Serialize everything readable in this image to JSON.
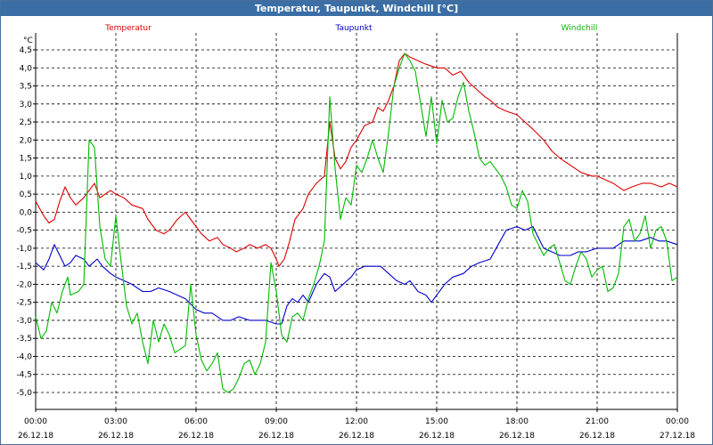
{
  "window": {
    "title": "Temperatur, Taupunkt, Windchill [°C]"
  },
  "chart_data": {
    "type": "line",
    "title": "Temperatur, Taupunkt, Windchill [°C]",
    "ylabel": "°C",
    "ylim": [
      -5.5,
      4.75
    ],
    "xlim": [
      0,
      24
    ],
    "grid": true,
    "legend_position": "top",
    "y_ticks": [
      "4,5",
      "4,0",
      "3,5",
      "3,0",
      "2,5",
      "2,0",
      "1,5",
      "1,0",
      "0,5",
      "0,0",
      "-0,5",
      "-1,0",
      "-1,5",
      "-2,0",
      "-2,5",
      "-3,0",
      "-3,5",
      "-4,0",
      "-4,5",
      "-5,0"
    ],
    "x_ticks": [
      {
        "time": "00:00",
        "date": "26.12.18"
      },
      {
        "time": "03:00",
        "date": "26.12.18"
      },
      {
        "time": "06:00",
        "date": "26.12.18"
      },
      {
        "time": "09:00",
        "date": "26.12.18"
      },
      {
        "time": "12:00",
        "date": "26.12.18"
      },
      {
        "time": "15:00",
        "date": "26.12.18"
      },
      {
        "time": "18:00",
        "date": "26.12.18"
      },
      {
        "time": "21:00",
        "date": "26.12.18"
      },
      {
        "time": "00:00",
        "date": "27.12.18"
      }
    ],
    "series": [
      {
        "name": "Temperatur",
        "color": "#dd0000",
        "points": [
          [
            0,
            0.3
          ],
          [
            0.3,
            -0.1
          ],
          [
            0.5,
            -0.3
          ],
          [
            0.7,
            -0.2
          ],
          [
            0.9,
            0.3
          ],
          [
            1.1,
            0.7
          ],
          [
            1.3,
            0.4
          ],
          [
            1.5,
            0.2
          ],
          [
            1.8,
            0.4
          ],
          [
            2.0,
            0.6
          ],
          [
            2.2,
            0.8
          ],
          [
            2.4,
            0.4
          ],
          [
            2.6,
            0.5
          ],
          [
            2.8,
            0.6
          ],
          [
            3.0,
            0.5
          ],
          [
            3.3,
            0.4
          ],
          [
            3.6,
            0.2
          ],
          [
            4.0,
            0.1
          ],
          [
            4.2,
            -0.2
          ],
          [
            4.5,
            -0.5
          ],
          [
            4.8,
            -0.6
          ],
          [
            5.0,
            -0.5
          ],
          [
            5.3,
            -0.2
          ],
          [
            5.6,
            0.0
          ],
          [
            5.8,
            -0.2
          ],
          [
            6.0,
            -0.4
          ],
          [
            6.2,
            -0.6
          ],
          [
            6.5,
            -0.8
          ],
          [
            6.8,
            -0.7
          ],
          [
            7.0,
            -0.9
          ],
          [
            7.3,
            -1.0
          ],
          [
            7.5,
            -1.1
          ],
          [
            7.8,
            -1.0
          ],
          [
            8.0,
            -0.9
          ],
          [
            8.3,
            -1.0
          ],
          [
            8.6,
            -0.9
          ],
          [
            8.8,
            -1.0
          ],
          [
            9.0,
            -1.3
          ],
          [
            9.1,
            -1.5
          ],
          [
            9.3,
            -1.3
          ],
          [
            9.5,
            -0.8
          ],
          [
            9.7,
            -0.2
          ],
          [
            10.0,
            0.1
          ],
          [
            10.2,
            0.5
          ],
          [
            10.5,
            0.8
          ],
          [
            10.8,
            1.0
          ],
          [
            11.0,
            2.5
          ],
          [
            11.2,
            1.5
          ],
          [
            11.4,
            1.2
          ],
          [
            11.6,
            1.4
          ],
          [
            11.8,
            1.8
          ],
          [
            12.0,
            2.0
          ],
          [
            12.3,
            2.4
          ],
          [
            12.6,
            2.5
          ],
          [
            12.8,
            2.9
          ],
          [
            13.0,
            2.8
          ],
          [
            13.2,
            3.1
          ],
          [
            13.4,
            3.5
          ],
          [
            13.6,
            4.2
          ],
          [
            13.8,
            4.4
          ],
          [
            14.0,
            4.3
          ],
          [
            14.3,
            4.2
          ],
          [
            14.6,
            4.1
          ],
          [
            15.0,
            4.0
          ],
          [
            15.3,
            4.0
          ],
          [
            15.6,
            3.8
          ],
          [
            15.9,
            3.9
          ],
          [
            16.2,
            3.6
          ],
          [
            16.5,
            3.4
          ],
          [
            16.8,
            3.2
          ],
          [
            17.0,
            3.1
          ],
          [
            17.3,
            2.9
          ],
          [
            17.6,
            2.8
          ],
          [
            18.0,
            2.7
          ],
          [
            18.3,
            2.5
          ],
          [
            18.6,
            2.3
          ],
          [
            19.0,
            2.0
          ],
          [
            19.3,
            1.7
          ],
          [
            19.6,
            1.5
          ],
          [
            20.0,
            1.3
          ],
          [
            20.4,
            1.1
          ],
          [
            20.8,
            1.0
          ],
          [
            21.0,
            1.0
          ],
          [
            21.3,
            0.9
          ],
          [
            21.6,
            0.8
          ],
          [
            22.0,
            0.6
          ],
          [
            22.3,
            0.7
          ],
          [
            22.7,
            0.8
          ],
          [
            23.0,
            0.8
          ],
          [
            23.4,
            0.7
          ],
          [
            23.7,
            0.8
          ],
          [
            24.0,
            0.7
          ]
        ]
      },
      {
        "name": "Taupunkt",
        "color": "#0000cc",
        "points": [
          [
            0,
            -1.4
          ],
          [
            0.3,
            -1.6
          ],
          [
            0.5,
            -1.3
          ],
          [
            0.7,
            -0.9
          ],
          [
            0.9,
            -1.2
          ],
          [
            1.1,
            -1.5
          ],
          [
            1.3,
            -1.4
          ],
          [
            1.5,
            -1.2
          ],
          [
            1.8,
            -1.3
          ],
          [
            2.0,
            -1.5
          ],
          [
            2.3,
            -1.3
          ],
          [
            2.5,
            -1.5
          ],
          [
            2.8,
            -1.7
          ],
          [
            3.0,
            -1.8
          ],
          [
            3.3,
            -1.9
          ],
          [
            3.6,
            -2.0
          ],
          [
            4.0,
            -2.2
          ],
          [
            4.3,
            -2.2
          ],
          [
            4.6,
            -2.1
          ],
          [
            5.0,
            -2.2
          ],
          [
            5.3,
            -2.3
          ],
          [
            5.6,
            -2.4
          ],
          [
            6.0,
            -2.7
          ],
          [
            6.3,
            -2.8
          ],
          [
            6.6,
            -2.8
          ],
          [
            7.0,
            -3.0
          ],
          [
            7.3,
            -3.0
          ],
          [
            7.6,
            -2.9
          ],
          [
            8.0,
            -3.0
          ],
          [
            8.3,
            -3.0
          ],
          [
            8.6,
            -3.0
          ],
          [
            9.0,
            -3.1
          ],
          [
            9.2,
            -3.1
          ],
          [
            9.4,
            -2.6
          ],
          [
            9.6,
            -2.4
          ],
          [
            9.8,
            -2.5
          ],
          [
            10.0,
            -2.3
          ],
          [
            10.2,
            -2.5
          ],
          [
            10.5,
            -2.0
          ],
          [
            10.8,
            -1.7
          ],
          [
            11.0,
            -1.8
          ],
          [
            11.2,
            -2.2
          ],
          [
            11.5,
            -2.0
          ],
          [
            11.8,
            -1.8
          ],
          [
            12.0,
            -1.6
          ],
          [
            12.3,
            -1.5
          ],
          [
            12.6,
            -1.5
          ],
          [
            12.9,
            -1.5
          ],
          [
            13.2,
            -1.7
          ],
          [
            13.5,
            -1.9
          ],
          [
            13.8,
            -2.0
          ],
          [
            14.0,
            -1.9
          ],
          [
            14.3,
            -2.2
          ],
          [
            14.6,
            -2.3
          ],
          [
            14.8,
            -2.5
          ],
          [
            15.0,
            -2.3
          ],
          [
            15.3,
            -2.0
          ],
          [
            15.6,
            -1.8
          ],
          [
            16.0,
            -1.7
          ],
          [
            16.3,
            -1.5
          ],
          [
            16.6,
            -1.4
          ],
          [
            17.0,
            -1.3
          ],
          [
            17.3,
            -0.9
          ],
          [
            17.6,
            -0.5
          ],
          [
            18.0,
            -0.4
          ],
          [
            18.3,
            -0.5
          ],
          [
            18.6,
            -0.4
          ],
          [
            19.0,
            -1.0
          ],
          [
            19.3,
            -1.1
          ],
          [
            19.6,
            -1.2
          ],
          [
            20.0,
            -1.2
          ],
          [
            20.3,
            -1.1
          ],
          [
            20.6,
            -1.1
          ],
          [
            21.0,
            -1.0
          ],
          [
            21.3,
            -1.0
          ],
          [
            21.6,
            -1.0
          ],
          [
            22.0,
            -0.8
          ],
          [
            22.3,
            -0.8
          ],
          [
            22.6,
            -0.8
          ],
          [
            23.0,
            -0.7
          ],
          [
            23.3,
            -0.8
          ],
          [
            23.6,
            -0.8
          ],
          [
            24.0,
            -0.9
          ]
        ]
      },
      {
        "name": "Windchill",
        "color": "#00bb00",
        "points": [
          [
            0,
            -2.9
          ],
          [
            0.2,
            -3.5
          ],
          [
            0.4,
            -3.3
          ],
          [
            0.6,
            -2.5
          ],
          [
            0.8,
            -2.8
          ],
          [
            1.0,
            -2.2
          ],
          [
            1.2,
            -1.8
          ],
          [
            1.3,
            -2.3
          ],
          [
            1.6,
            -2.2
          ],
          [
            1.8,
            -2.0
          ],
          [
            2.0,
            2.0
          ],
          [
            2.2,
            1.8
          ],
          [
            2.4,
            -0.4
          ],
          [
            2.6,
            -1.3
          ],
          [
            2.8,
            -1.5
          ],
          [
            3.0,
            -0.1
          ],
          [
            3.2,
            -1.4
          ],
          [
            3.4,
            -2.6
          ],
          [
            3.6,
            -3.1
          ],
          [
            3.8,
            -2.8
          ],
          [
            4.0,
            -3.6
          ],
          [
            4.2,
            -4.2
          ],
          [
            4.4,
            -3.0
          ],
          [
            4.6,
            -3.6
          ],
          [
            4.8,
            -3.1
          ],
          [
            5.0,
            -3.4
          ],
          [
            5.2,
            -3.9
          ],
          [
            5.4,
            -3.8
          ],
          [
            5.6,
            -3.7
          ],
          [
            5.8,
            -2.0
          ],
          [
            6.0,
            -3.4
          ],
          [
            6.2,
            -4.1
          ],
          [
            6.4,
            -4.4
          ],
          [
            6.6,
            -4.2
          ],
          [
            6.8,
            -3.9
          ],
          [
            7.0,
            -4.9
          ],
          [
            7.2,
            -5.0
          ],
          [
            7.4,
            -4.9
          ],
          [
            7.6,
            -4.6
          ],
          [
            7.8,
            -4.2
          ],
          [
            8.0,
            -4.1
          ],
          [
            8.2,
            -4.5
          ],
          [
            8.4,
            -4.2
          ],
          [
            8.6,
            -3.6
          ],
          [
            8.8,
            -1.4
          ],
          [
            9.0,
            -2.2
          ],
          [
            9.2,
            -3.4
          ],
          [
            9.4,
            -3.6
          ],
          [
            9.6,
            -2.9
          ],
          [
            9.8,
            -2.8
          ],
          [
            10.0,
            -3.0
          ],
          [
            10.2,
            -2.4
          ],
          [
            10.4,
            -2.0
          ],
          [
            10.6,
            -1.5
          ],
          [
            10.8,
            -0.8
          ],
          [
            11.0,
            3.2
          ],
          [
            11.2,
            1.2
          ],
          [
            11.4,
            -0.2
          ],
          [
            11.6,
            0.4
          ],
          [
            11.8,
            0.2
          ],
          [
            12.0,
            1.3
          ],
          [
            12.2,
            1.1
          ],
          [
            12.4,
            1.5
          ],
          [
            12.6,
            2.0
          ],
          [
            12.8,
            1.5
          ],
          [
            13.0,
            1.1
          ],
          [
            13.2,
            2.2
          ],
          [
            13.4,
            3.5
          ],
          [
            13.6,
            4.0
          ],
          [
            13.8,
            4.4
          ],
          [
            14.0,
            4.2
          ],
          [
            14.2,
            3.9
          ],
          [
            14.4,
            3.0
          ],
          [
            14.6,
            2.1
          ],
          [
            14.8,
            3.2
          ],
          [
            15.0,
            1.9
          ],
          [
            15.2,
            3.1
          ],
          [
            15.4,
            2.5
          ],
          [
            15.6,
            2.6
          ],
          [
            15.8,
            3.2
          ],
          [
            16.0,
            3.6
          ],
          [
            16.2,
            2.8
          ],
          [
            16.4,
            2.2
          ],
          [
            16.6,
            1.5
          ],
          [
            16.8,
            1.3
          ],
          [
            17.0,
            1.4
          ],
          [
            17.2,
            1.2
          ],
          [
            17.4,
            1.0
          ],
          [
            17.6,
            0.7
          ],
          [
            17.8,
            0.2
          ],
          [
            18.0,
            0.1
          ],
          [
            18.2,
            0.6
          ],
          [
            18.4,
            0.3
          ],
          [
            18.6,
            -0.6
          ],
          [
            18.8,
            -0.9
          ],
          [
            19.0,
            -1.2
          ],
          [
            19.2,
            -1.0
          ],
          [
            19.4,
            -0.9
          ],
          [
            19.6,
            -1.4
          ],
          [
            19.8,
            -1.9
          ],
          [
            20.0,
            -2.0
          ],
          [
            20.2,
            -1.5
          ],
          [
            20.4,
            -1.1
          ],
          [
            20.6,
            -1.3
          ],
          [
            20.8,
            -1.8
          ],
          [
            21.0,
            -1.6
          ],
          [
            21.2,
            -1.5
          ],
          [
            21.4,
            -2.2
          ],
          [
            21.6,
            -2.1
          ],
          [
            21.8,
            -1.7
          ],
          [
            22.0,
            -0.4
          ],
          [
            22.2,
            -0.2
          ],
          [
            22.4,
            -0.8
          ],
          [
            22.6,
            -0.6
          ],
          [
            22.8,
            -0.1
          ],
          [
            23.0,
            -1.0
          ],
          [
            23.2,
            -0.5
          ],
          [
            23.4,
            -0.4
          ],
          [
            23.6,
            -0.8
          ],
          [
            23.8,
            -1.9
          ],
          [
            24.0,
            -1.8
          ]
        ]
      }
    ]
  }
}
